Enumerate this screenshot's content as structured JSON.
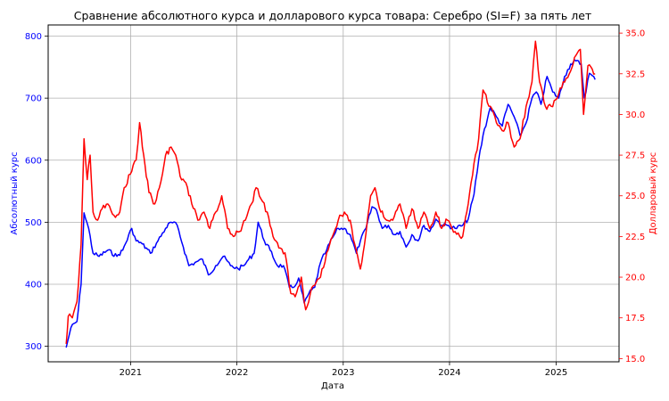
{
  "chart_data": {
    "type": "line",
    "title": "Сравнение абсолютного курса и долларового курса товара: Серебро (SI=F) за пять лет",
    "xlabel": "Дата",
    "ylabel_left": "Абсолютный курс",
    "ylabel_right": "Долларовый курс",
    "x_ticks": [
      "2021",
      "2022",
      "2023",
      "2024",
      "2025"
    ],
    "y_left_ticks": [
      "300",
      "400",
      "500",
      "600",
      "700",
      "800"
    ],
    "y_right_ticks": [
      "15.0",
      "17.5",
      "20.0",
      "22.5",
      "25.0",
      "27.5",
      "30.0",
      "32.5",
      "35.0"
    ],
    "xlim": [
      "2020-03-24",
      "2025-08-05"
    ],
    "ylim_left": [
      275,
      818
    ],
    "ylim_right": [
      14.8,
      35.5
    ],
    "grid": true,
    "colors": {
      "left": "#0000ff",
      "right": "#ff0000",
      "grid": "#b0b0b0",
      "axis": "#000000"
    },
    "series": [
      {
        "axis": "left",
        "color": "#0000ff",
        "x": [
          "2020-05-25",
          "2020-06-10",
          "2020-07-01",
          "2020-07-15",
          "2020-07-25",
          "2020-08-10",
          "2020-08-25",
          "2020-09-15",
          "2020-10-15",
          "2020-11-15",
          "2020-12-05",
          "2021-01-05",
          "2021-01-20",
          "2021-02-10",
          "2021-03-10",
          "2021-04-05",
          "2021-05-01",
          "2021-05-20",
          "2021-06-10",
          "2021-07-01",
          "2021-07-20",
          "2021-08-10",
          "2021-09-05",
          "2021-09-25",
          "2021-10-20",
          "2021-11-15",
          "2021-12-10",
          "2022-01-05",
          "2022-01-25",
          "2022-02-10",
          "2022-03-01",
          "2022-03-15",
          "2022-04-05",
          "2022-04-25",
          "2022-05-20",
          "2022-06-10",
          "2022-06-30",
          "2022-07-15",
          "2022-08-01",
          "2022-08-20",
          "2022-09-05",
          "2022-09-25",
          "2022-10-15",
          "2022-11-05",
          "2022-11-25",
          "2022-12-15",
          "2023-01-05",
          "2023-01-25",
          "2023-02-15",
          "2023-03-01",
          "2023-03-20",
          "2023-04-10",
          "2023-04-25",
          "2023-05-15",
          "2023-06-05",
          "2023-06-25",
          "2023-07-15",
          "2023-08-05",
          "2023-08-25",
          "2023-09-15",
          "2023-10-05",
          "2023-10-25",
          "2023-11-15",
          "2023-12-05",
          "2023-12-25",
          "2024-01-20",
          "2024-02-15",
          "2024-03-05",
          "2024-03-25",
          "2024-04-10",
          "2024-04-25",
          "2024-05-20",
          "2024-06-10",
          "2024-06-30",
          "2024-07-20",
          "2024-08-10",
          "2024-08-30",
          "2024-09-20",
          "2024-10-10",
          "2024-10-25",
          "2024-11-10",
          "2024-12-01",
          "2024-12-20",
          "2025-01-10",
          "2025-01-30",
          "2025-02-20",
          "2025-03-10",
          "2025-03-28",
          "2025-04-08",
          "2025-04-25",
          "2025-05-15"
        ],
        "values": [
          298,
          330,
          340,
          400,
          515,
          490,
          450,
          445,
          455,
          445,
          455,
          490,
          470,
          465,
          450,
          470,
          490,
          500,
          495,
          460,
          430,
          435,
          440,
          415,
          430,
          445,
          430,
          425,
          430,
          440,
          450,
          500,
          470,
          455,
          430,
          430,
          395,
          395,
          410,
          370,
          385,
          395,
          435,
          455,
          475,
          490,
          490,
          480,
          450,
          470,
          490,
          525,
          520,
          490,
          495,
          480,
          485,
          460,
          480,
          470,
          495,
          485,
          505,
          495,
          495,
          490,
          495,
          505,
          545,
          600,
          640,
          685,
          670,
          655,
          690,
          670,
          640,
          660,
          700,
          710,
          690,
          735,
          710,
          700,
          735,
          755,
          760,
          755,
          700,
          740,
          730
        ]
      },
      {
        "axis": "right",
        "color": "#ff0000",
        "x": [
          "2020-05-25",
          "2020-06-01",
          "2020-06-15",
          "2020-07-01",
          "2020-07-15",
          "2020-07-25",
          "2020-08-05",
          "2020-08-15",
          "2020-08-25",
          "2020-09-10",
          "2020-09-25",
          "2020-10-15",
          "2020-11-05",
          "2020-11-25",
          "2020-12-10",
          "2021-01-05",
          "2021-01-20",
          "2021-02-01",
          "2021-02-15",
          "2021-03-05",
          "2021-03-25",
          "2021-04-10",
          "2021-05-01",
          "2021-05-20",
          "2021-06-05",
          "2021-06-20",
          "2021-07-10",
          "2021-07-30",
          "2021-08-20",
          "2021-09-10",
          "2021-09-30",
          "2021-10-20",
          "2021-11-10",
          "2021-11-30",
          "2021-12-20",
          "2022-01-10",
          "2022-01-30",
          "2022-02-20",
          "2022-03-08",
          "2022-03-25",
          "2022-04-15",
          "2022-05-05",
          "2022-05-25",
          "2022-06-15",
          "2022-07-05",
          "2022-07-20",
          "2022-08-10",
          "2022-08-25",
          "2022-09-10",
          "2022-09-25",
          "2022-10-15",
          "2022-11-05",
          "2022-11-25",
          "2022-12-15",
          "2023-01-05",
          "2023-01-25",
          "2023-02-10",
          "2023-03-01",
          "2023-03-15",
          "2023-04-05",
          "2023-04-20",
          "2023-05-10",
          "2023-05-30",
          "2023-06-20",
          "2023-07-15",
          "2023-08-05",
          "2023-08-25",
          "2023-09-15",
          "2023-10-05",
          "2023-10-25",
          "2023-11-15",
          "2023-12-05",
          "2023-12-25",
          "2024-01-20",
          "2024-02-15",
          "2024-03-05",
          "2024-03-25",
          "2024-04-10",
          "2024-04-25",
          "2024-05-20",
          "2024-06-10",
          "2024-06-30",
          "2024-07-20",
          "2024-08-10",
          "2024-08-30",
          "2024-09-20",
          "2024-10-10",
          "2024-10-22",
          "2024-11-05",
          "2024-11-25",
          "2024-12-15",
          "2025-01-05",
          "2025-01-25",
          "2025-02-15",
          "2025-03-05",
          "2025-03-25",
          "2025-04-05",
          "2025-04-20",
          "2025-05-15"
        ],
        "values": [
          15.9,
          17.6,
          17.5,
          18.5,
          22.0,
          28.5,
          26.0,
          27.5,
          24.0,
          23.5,
          24.2,
          24.5,
          23.8,
          24.0,
          25.5,
          26.5,
          27.2,
          29.5,
          27.5,
          25.2,
          24.5,
          25.5,
          27.5,
          28.0,
          27.5,
          26.2,
          25.8,
          24.5,
          23.5,
          24.0,
          23.0,
          24.0,
          25.0,
          23.0,
          22.5,
          22.8,
          23.5,
          24.5,
          25.5,
          24.8,
          24.0,
          22.5,
          21.8,
          21.5,
          19.0,
          18.8,
          20.0,
          18.0,
          19.0,
          19.5,
          20.0,
          21.5,
          22.5,
          23.5,
          24.0,
          23.5,
          22.0,
          20.5,
          22.0,
          25.0,
          25.5,
          24.0,
          23.5,
          23.5,
          24.5,
          23.0,
          24.2,
          23.0,
          24.0,
          23.0,
          24.0,
          23.0,
          23.5,
          22.8,
          22.5,
          24.5,
          27.0,
          28.5,
          31.5,
          30.5,
          29.5,
          29.0,
          29.5,
          28.0,
          28.5,
          30.5,
          32.0,
          34.5,
          32.0,
          30.5,
          30.5,
          31.0,
          32.0,
          32.5,
          33.5,
          34.0,
          30.0,
          33.0,
          32.5
        ]
      }
    ]
  }
}
